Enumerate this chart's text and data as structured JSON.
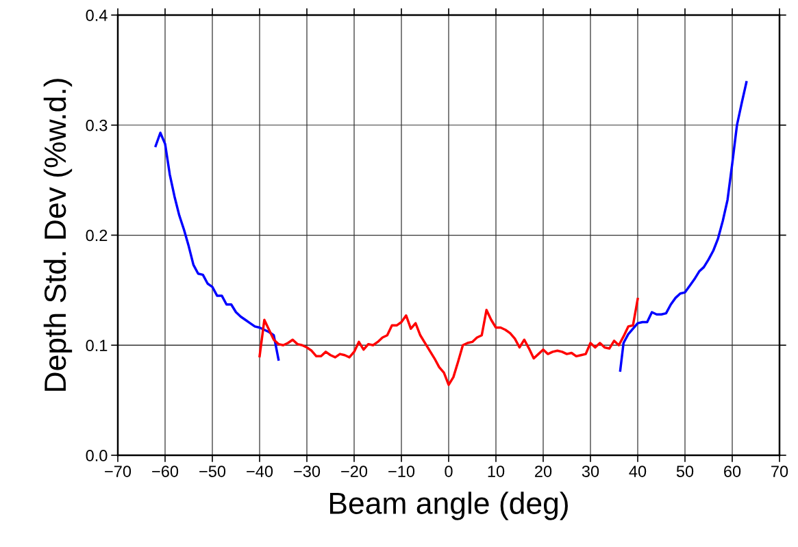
{
  "chart_data": {
    "type": "line",
    "xlabel": "Beam angle (deg)",
    "ylabel": "Depth Std. Dev (%w.d.)",
    "xlim": [
      -70,
      70
    ],
    "xticks": [
      {
        "value": -70,
        "label": "−70"
      },
      {
        "value": -60,
        "label": "−60"
      },
      {
        "value": -50,
        "label": "−50"
      },
      {
        "value": -40,
        "label": "−40"
      },
      {
        "value": -30,
        "label": "−30"
      },
      {
        "value": -20,
        "label": "−20"
      },
      {
        "value": -10,
        "label": "−10"
      },
      0,
      10,
      20,
      30,
      40,
      50,
      60,
      70
    ],
    "ylim": [
      0,
      0.4
    ],
    "yticks": [
      {
        "value": 0,
        "label": "0.0"
      },
      0.1,
      0.2,
      0.3,
      0.4
    ],
    "grid": true,
    "legend": false,
    "marker": "none",
    "line_style": "solid",
    "series": [
      {
        "color": "#0000ff",
        "x": [
          -62,
          -61,
          -60,
          -59,
          -58,
          -57,
          -56,
          -55,
          -54,
          -53,
          -52,
          -51,
          -50,
          -49,
          -48,
          -47,
          -46,
          -45,
          -44,
          -43,
          -42,
          -41,
          -40,
          -39,
          -38,
          -37,
          -36
        ],
        "values": [
          0.281,
          0.293,
          0.283,
          0.255,
          0.235,
          0.218,
          0.205,
          0.19,
          0.173,
          0.165,
          0.164,
          0.156,
          0.153,
          0.145,
          0.145,
          0.137,
          0.137,
          0.13,
          0.126,
          0.123,
          0.12,
          0.117,
          0.116,
          0.114,
          0.112,
          0.109,
          0.087
        ]
      },
      {
        "color": "#ff0000",
        "x": [
          -40,
          -39,
          -38,
          -37,
          -36,
          -35,
          -34,
          -33,
          -32,
          -31,
          -30,
          -29,
          -28,
          -27,
          -26,
          -25,
          -24,
          -23,
          -22,
          -21,
          -20,
          -19,
          -18,
          -17,
          -16,
          -15,
          -14,
          -13,
          -12,
          -11,
          -10,
          -9,
          -8,
          -7,
          -6,
          -5,
          -4,
          -3,
          -2,
          -1,
          0,
          1,
          2,
          3,
          4,
          5,
          6,
          7,
          8,
          9,
          10,
          11,
          12,
          13,
          14,
          15,
          16,
          17,
          18,
          19,
          20,
          21,
          22,
          23,
          24,
          25,
          26,
          27,
          28,
          29,
          30,
          31,
          32,
          33,
          34,
          35,
          36,
          37,
          38,
          39,
          40
        ],
        "values": [
          0.09,
          0.123,
          0.114,
          0.105,
          0.101,
          0.1,
          0.102,
          0.105,
          0.101,
          0.1,
          0.098,
          0.095,
          0.09,
          0.09,
          0.094,
          0.091,
          0.089,
          0.092,
          0.091,
          0.089,
          0.094,
          0.103,
          0.096,
          0.101,
          0.1,
          0.103,
          0.107,
          0.109,
          0.118,
          0.118,
          0.121,
          0.127,
          0.115,
          0.12,
          0.109,
          0.102,
          0.095,
          0.088,
          0.08,
          0.075,
          0.064,
          0.071,
          0.085,
          0.1,
          0.102,
          0.103,
          0.107,
          0.109,
          0.132,
          0.123,
          0.116,
          0.116,
          0.114,
          0.111,
          0.106,
          0.098,
          0.105,
          0.097,
          0.088,
          0.092,
          0.096,
          0.092,
          0.094,
          0.095,
          0.094,
          0.092,
          0.093,
          0.09,
          0.091,
          0.092,
          0.102,
          0.098,
          0.102,
          0.098,
          0.097,
          0.104,
          0.1,
          0.108,
          0.117,
          0.118,
          0.142
        ]
      },
      {
        "color": "#0000ff",
        "x": [
          36.3,
          37,
          38,
          39,
          40,
          41,
          42,
          43,
          44,
          45,
          46,
          47,
          48,
          49,
          50,
          51,
          52,
          53,
          54,
          55,
          56,
          57,
          58,
          59,
          60,
          61,
          62,
          63
        ],
        "values": [
          0.077,
          0.102,
          0.11,
          0.115,
          0.12,
          0.121,
          0.121,
          0.13,
          0.128,
          0.128,
          0.129,
          0.137,
          0.143,
          0.147,
          0.148,
          0.154,
          0.16,
          0.167,
          0.171,
          0.178,
          0.186,
          0.197,
          0.213,
          0.232,
          0.265,
          0.3,
          0.32,
          0.339
        ]
      }
    ]
  }
}
